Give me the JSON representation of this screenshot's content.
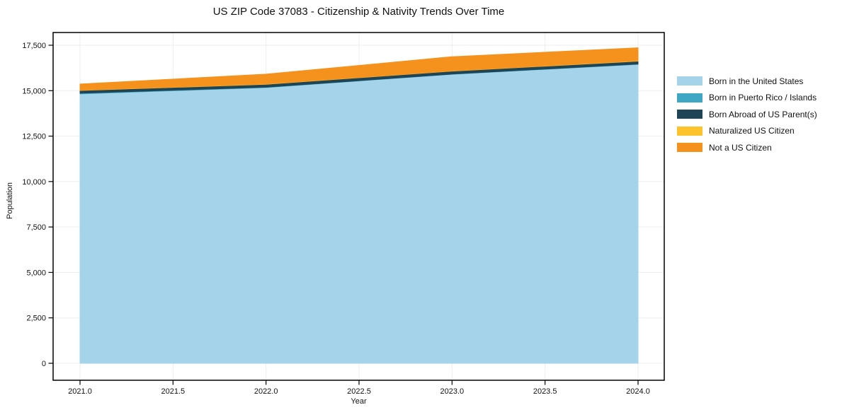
{
  "chart": {
    "title": "US ZIP Code 37083 - Citizenship & Nativity Trends Over Time",
    "xlabel": "Year",
    "ylabel": "Population"
  },
  "chart_data": {
    "type": "area",
    "stacked": true,
    "title": "US ZIP Code 37083 - Citizenship & Nativity Trends Over Time",
    "xlabel": "Year",
    "ylabel": "Population",
    "grid": true,
    "legend_position": "right",
    "x": [
      2021,
      2022,
      2023,
      2024
    ],
    "xlim": [
      2021,
      2024
    ],
    "ylim": [
      0,
      17500
    ],
    "x_tick_values": [
      2021.0,
      2021.5,
      2022.0,
      2022.5,
      2023.0,
      2023.5,
      2024.0
    ],
    "x_tick_labels": [
      "2021.0",
      "2021.5",
      "2022.0",
      "2022.5",
      "2023.0",
      "2023.5",
      "2024.0"
    ],
    "y_tick_values": [
      0,
      2500,
      5000,
      7500,
      10000,
      12500,
      15000,
      17500
    ],
    "y_tick_labels": [
      "0",
      "2,500",
      "5,000",
      "7,500",
      "10,000",
      "12,500",
      "15,000",
      "17,500"
    ],
    "series": [
      {
        "name": "Born in the United States",
        "color": "#A5D3EA",
        "values": [
          14820,
          15170,
          15900,
          16450
        ]
      },
      {
        "name": "Born in Puerto Rico / Islands",
        "color": "#3EA8C4",
        "values": [
          40,
          20,
          15,
          15
        ]
      },
      {
        "name": "Born Abroad of US Parent(s)",
        "color": "#1F4456",
        "values": [
          150,
          160,
          160,
          160
        ]
      },
      {
        "name": "Naturalized US Citizen",
        "color": "#FCC32D",
        "values": [
          15,
          20,
          15,
          25
        ]
      },
      {
        "name": "Not a US Citizen",
        "color": "#F5921E",
        "values": [
          340,
          540,
          780,
          710
        ]
      }
    ],
    "stack_totals": [
      15365,
      15910,
      16870,
      17360
    ]
  }
}
